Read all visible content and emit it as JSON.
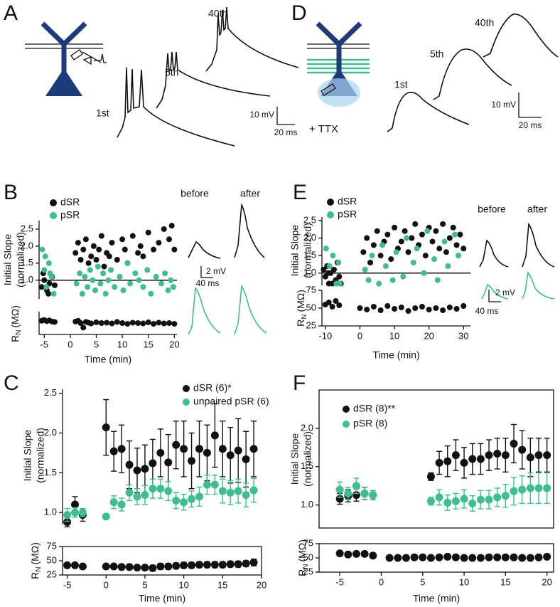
{
  "panel_a": {
    "letter": "A",
    "trace_labels": [
      "1st",
      "5th",
      "40th"
    ],
    "scale_bar": [
      "10 mV",
      "20 ms"
    ]
  },
  "panel_d": {
    "letter": "D",
    "trace_labels": [
      "1st",
      "5th",
      "40th"
    ],
    "drug": "+ TTX",
    "scale_bar": [
      "10 mV",
      "20 ms"
    ]
  },
  "insets": {
    "b": {
      "labels": [
        "before",
        "after"
      ],
      "scale_bar": [
        "2 mV",
        "40 ms"
      ]
    },
    "e": {
      "labels": [
        "before",
        "after"
      ],
      "scale_bar": [
        "2 mV",
        "40 ms"
      ]
    }
  },
  "chart_data": [
    {
      "type": "scatter",
      "letter": "B",
      "ylabel": [
        "Initial Slope",
        "(normalized)"
      ],
      "xlim": [
        -6,
        20.5
      ],
      "ylim": [
        0.45,
        2.75
      ],
      "yticks": [
        {
          "value": 1,
          "label": "1.0"
        },
        1.5,
        {
          "value": 2,
          "label": "2.0"
        },
        2.5
      ],
      "reference_line": 1,
      "series": [
        {
          "name": "dSR",
          "color": "#111111",
          "x": [
            -5.5,
            -5.2,
            -5,
            -4.5,
            -4.2,
            -4,
            -3.5,
            -3,
            1,
            1.5,
            2,
            2.5,
            3,
            3.5,
            4,
            4.5,
            5,
            5.5,
            6,
            6.5,
            7,
            7.5,
            8,
            9,
            10,
            10.5,
            11,
            12,
            13,
            13.5,
            14,
            15,
            16,
            17,
            18,
            19,
            19.5,
            20
          ],
          "values": [
            0.8,
            1.2,
            1.0,
            0.7,
            0.6,
            0.9,
            1.1,
            0.85,
            1.8,
            2.1,
            1.6,
            1.9,
            2.2,
            1.5,
            1.7,
            2.0,
            1.6,
            1.9,
            2.3,
            1.4,
            1.8,
            1.7,
            2.1,
            1.6,
            2.2,
            1.9,
            1.5,
            2.3,
            1.8,
            2.0,
            1.7,
            2.4,
            1.9,
            2.1,
            2.5,
            2.2,
            2.6,
            1.9
          ]
        },
        {
          "name": "pSR",
          "color": "#3cbf8c",
          "x": [
            -5.4,
            -5,
            -4.8,
            -4.6,
            -4.1,
            -3.9,
            -3.6,
            -3.2,
            1.2,
            1.8,
            2.3,
            2.8,
            3.3,
            3.8,
            4.3,
            4.8,
            5.3,
            5.8,
            6.3,
            6.8,
            7.3,
            7.8,
            8.5,
            9.5,
            10.2,
            11,
            11.5,
            12.5,
            13.2,
            14,
            14.8,
            15.5,
            16.5,
            17.5,
            18.2,
            18.8,
            19.3,
            19.8
          ],
          "values": [
            1.9,
            1.3,
            1.7,
            0.8,
            1.5,
            1.2,
            1.1,
            0.6,
            0.9,
            1.2,
            0.6,
            1.1,
            0.8,
            1.3,
            1.0,
            0.7,
            1.4,
            0.9,
            1.2,
            0.6,
            1.0,
            1.3,
            0.8,
            1.1,
            0.7,
            1.5,
            0.9,
            1.2,
            1.0,
            0.8,
            1.3,
            0.6,
            1.1,
            0.9,
            1.2,
            0.7,
            1.0,
            0.8
          ]
        }
      ]
    },
    {
      "type": "scatter",
      "ylabel": {
        "main": "R",
        "sub": "N",
        "unit": "(MΩ)"
      },
      "xlabel": "Time (min)",
      "xlim": [
        -6,
        20.5
      ],
      "ylim": [
        0,
        60
      ],
      "xticks": [
        -5,
        0,
        5,
        10,
        15,
        20
      ],
      "series": [
        {
          "color": "#111111",
          "x": [
            -5.5,
            -5,
            -4.5,
            -4,
            -3.5,
            -3,
            1,
            1.5,
            2,
            2.5,
            3,
            3.5,
            4,
            5,
            6,
            7,
            8,
            9,
            10,
            11,
            12,
            13,
            14,
            15,
            16,
            17,
            18,
            19,
            20
          ],
          "values": [
            36,
            38,
            35,
            37,
            34,
            33,
            34,
            36,
            30,
            18,
            33,
            31,
            29,
            32,
            30,
            31,
            29,
            33,
            30,
            28,
            31,
            30,
            29,
            32,
            28,
            31,
            29,
            30,
            28
          ]
        }
      ]
    },
    {
      "type": "scatter",
      "letter": "E",
      "ylabel": [
        "Initial Slope",
        "(normalized)"
      ],
      "xlim": [
        -11,
        32
      ],
      "ylim": [
        0.65,
        2.6
      ],
      "yticks": [
        {
          "value": 1,
          "label": "1.0"
        },
        1.5,
        {
          "value": 2,
          "label": "2.0"
        },
        2.5
      ],
      "reference_line": 1,
      "series": [
        {
          "name": "dSR",
          "color": "#111111",
          "x": [
            -10.5,
            -10,
            -9.5,
            -9.2,
            -9,
            -8.5,
            -8,
            -7.5,
            -7,
            -6.5,
            -6,
            -5.5,
            1,
            2,
            3,
            4,
            5,
            6,
            7,
            8,
            9,
            10,
            11,
            12,
            13,
            14,
            15,
            16,
            17,
            18,
            19,
            20,
            21,
            22,
            23,
            24,
            25,
            26,
            27,
            28,
            29,
            30
          ],
          "values": [
            1.1,
            0.9,
            1.2,
            1.0,
            0.7,
            1.0,
            0.7,
            1.1,
            0.8,
            1.3,
            0.9,
            0.7,
            1.6,
            2.0,
            1.3,
            1.8,
            2.2,
            1.5,
            1.9,
            2.1,
            1.4,
            2.3,
            1.7,
            1.9,
            2.2,
            1.6,
            2.0,
            2.4,
            1.8,
            2.1,
            1.5,
            2.3,
            1.9,
            2.2,
            1.7,
            2.4,
            1.6,
            2.0,
            2.3,
            1.8,
            2.1,
            1.7
          ]
        },
        {
          "name": "pSR",
          "color": "#3cbf8c",
          "x": [
            -9.8,
            -8.8,
            -7.8,
            -6.8,
            -6.2,
            -5.8,
            1.5,
            2.5,
            3.5,
            5.5,
            6.5,
            7.5,
            9.5,
            10.5,
            12.5,
            13.5,
            15.5,
            16.5,
            18.5,
            19.5,
            21.5,
            22.5,
            24.5,
            25.5,
            27.5,
            28.5
          ],
          "values": [
            1.7,
            1.2,
            1.5,
            0.7,
            1.3,
            0.7,
            1.1,
            0.8,
            1.5,
            0.7,
            1.8,
            1.2,
            0.8,
            1.6,
            0.9,
            2.0,
            1.3,
            1.7,
            1.0,
            2.2,
            1.4,
            0.8,
            1.9,
            1.2,
            2.1,
            1.5
          ]
        }
      ]
    },
    {
      "type": "scatter",
      "ylabel": {
        "main": "R",
        "sub": "N",
        "unit": "(MΩ)"
      },
      "xlabel": "Time (min)",
      "xlim": [
        -11,
        32
      ],
      "ylim": [
        25,
        75
      ],
      "xticks": [
        -10,
        0,
        10,
        20,
        30
      ],
      "yticks": [
        25,
        50,
        75
      ],
      "series": [
        {
          "color": "#111111",
          "x": [
            -10,
            -9,
            -8,
            -7,
            -6,
            0,
            2,
            4,
            6,
            8,
            10,
            12,
            14,
            16,
            18,
            20,
            22,
            24,
            26,
            28,
            30
          ],
          "values": [
            55,
            58,
            52,
            60,
            54,
            50,
            48,
            52,
            47,
            53,
            49,
            51,
            46,
            50,
            52,
            48,
            50,
            47,
            51,
            49,
            53
          ]
        }
      ]
    },
    {
      "type": "errorbar",
      "letter": "C",
      "ylabel": [
        "Initial Slope",
        "(normalized)"
      ],
      "xlim": [
        -5.6,
        20
      ],
      "ylim": [
        0.85,
        2.55
      ],
      "yticks": [
        {
          "value": 1,
          "label": "1.0"
        },
        1.5,
        {
          "value": 2,
          "label": "2.0"
        },
        2.5
      ],
      "series": [
        {
          "name": "dSR (6)*",
          "color": "#111111",
          "x": [
            -5,
            -4,
            -3,
            0,
            1,
            2,
            3,
            4,
            5,
            6,
            7,
            8,
            9,
            10,
            11,
            12,
            13,
            14,
            15,
            16,
            17,
            18,
            19
          ],
          "values": [
            0.88,
            1.1,
            0.97,
            2.07,
            1.77,
            1.8,
            1.6,
            1.53,
            1.55,
            1.62,
            1.75,
            1.63,
            1.85,
            1.8,
            1.65,
            1.8,
            1.75,
            1.97,
            1.8,
            1.72,
            1.78,
            1.67,
            1.8
          ],
          "errors": [
            0.06,
            0.1,
            0.08,
            0.35,
            0.25,
            0.3,
            0.3,
            0.28,
            0.3,
            0.3,
            0.3,
            0.35,
            0.3,
            0.35,
            0.35,
            0.35,
            0.35,
            0.4,
            0.35,
            0.35,
            0.4,
            0.35,
            0.35
          ]
        },
        {
          "name": "unpaired pSR (6)",
          "color": "#3cbf8c",
          "x": [
            -5,
            -4,
            -3,
            0,
            1,
            2,
            3,
            4,
            5,
            6,
            7,
            8,
            9,
            10,
            11,
            12,
            13,
            14,
            15,
            16,
            17,
            18,
            19
          ],
          "values": [
            0.97,
            1.0,
            1.0,
            0.95,
            1.13,
            1.1,
            1.25,
            1.2,
            1.22,
            1.3,
            1.3,
            1.27,
            1.15,
            1.13,
            1.17,
            1.2,
            1.35,
            1.35,
            1.27,
            1.25,
            1.27,
            1.22,
            1.28
          ],
          "errors": [
            0.08,
            0.06,
            0.05,
            0.03,
            0.08,
            0.08,
            0.1,
            0.1,
            0.12,
            0.12,
            0.12,
            0.12,
            0.1,
            0.1,
            0.1,
            0.12,
            0.12,
            0.12,
            0.15,
            0.15,
            0.15,
            0.15,
            0.15
          ]
        }
      ]
    },
    {
      "type": "errorbar",
      "ylabel": {
        "main": "R",
        "sub": "N",
        "unit": "(MΩ)"
      },
      "xlabel": "Time (min)",
      "xlim": [
        -5.6,
        20
      ],
      "ylim": [
        25,
        75
      ],
      "xticks": [
        -5,
        0,
        5,
        10,
        15,
        20
      ],
      "yticks": [
        25,
        50,
        75
      ],
      "series": [
        {
          "color": "#111111",
          "x": [
            -5,
            -4,
            -3,
            0,
            1,
            2,
            3,
            4,
            5,
            6,
            7,
            8,
            9,
            10,
            11,
            12,
            13,
            14,
            15,
            16,
            17,
            18,
            19
          ],
          "values": [
            42,
            42,
            40,
            40,
            40,
            39,
            39,
            38,
            38,
            37,
            40,
            40,
            41,
            42,
            42,
            43,
            43,
            43,
            43,
            44,
            44,
            45,
            47
          ],
          "errors": [
            4,
            4,
            4,
            3,
            3,
            4,
            4,
            4,
            4,
            5,
            5,
            5,
            5,
            5,
            5,
            5,
            5,
            5,
            5,
            5,
            5,
            5,
            6
          ]
        }
      ]
    },
    {
      "type": "errorbar",
      "letter": "F",
      "ylabel": [
        "Initial Slope",
        "(normalized)"
      ],
      "xlim": [
        -7.5,
        20.8
      ],
      "ylim": [
        0.7,
        2.5
      ],
      "yticks": [
        {
          "value": 1,
          "label": "1.0"
        },
        1.5,
        {
          "value": 2,
          "label": "2.0"
        }
      ],
      "series": [
        {
          "name": "dSR (8)**",
          "color": "#111111",
          "x": [
            -5,
            -4,
            -3,
            -2,
            -1,
            6,
            7,
            8,
            9,
            10,
            11,
            12,
            13,
            14,
            15,
            16,
            17,
            18,
            19,
            20
          ],
          "values": [
            1.08,
            1.12,
            1.13,
            1.15,
            1.13,
            1.37,
            1.55,
            1.57,
            1.65,
            1.55,
            1.6,
            1.6,
            1.65,
            1.67,
            1.65,
            1.8,
            1.72,
            1.62,
            1.65,
            1.65
          ],
          "errors": [
            0.07,
            0.08,
            0.08,
            0.08,
            0.06,
            0.05,
            0.15,
            0.2,
            0.2,
            0.2,
            0.2,
            0.2,
            0.2,
            0.2,
            0.22,
            0.25,
            0.25,
            0.25,
            0.22,
            0.22
          ]
        },
        {
          "name": "pSR (8)",
          "color": "#3cbf8c",
          "x": [
            -5,
            -4,
            -3,
            -2,
            -1,
            6,
            7,
            8,
            9,
            10,
            11,
            12,
            13,
            14,
            15,
            16,
            17,
            18,
            19,
            20
          ],
          "values": [
            1.2,
            1.15,
            1.25,
            1.15,
            1.13,
            1.05,
            1.1,
            1.03,
            1.05,
            1.08,
            1.02,
            1.07,
            1.07,
            1.1,
            1.12,
            1.18,
            1.2,
            1.22,
            1.22,
            1.22
          ],
          "errors": [
            0.1,
            0.08,
            0.1,
            0.08,
            0.06,
            0.05,
            0.1,
            0.1,
            0.1,
            0.12,
            0.1,
            0.12,
            0.12,
            0.12,
            0.15,
            0.18,
            0.18,
            0.2,
            0.2,
            0.2
          ]
        }
      ]
    },
    {
      "type": "errorbar",
      "ylabel": {
        "main": "R",
        "sub": "N",
        "unit": "(MΩ)"
      },
      "xlabel": "Time (min)",
      "xlim": [
        -7.5,
        20.8
      ],
      "ylim": [
        25,
        75
      ],
      "xticks": [
        -5,
        0,
        5,
        10,
        15,
        20
      ],
      "yticks": [
        25,
        50,
        75
      ],
      "series": [
        {
          "color": "#111111",
          "x": [
            -5,
            -4,
            -3,
            -2,
            -1,
            1,
            2,
            3,
            4,
            5,
            6,
            7,
            8,
            9,
            10,
            11,
            12,
            13,
            14,
            15,
            16,
            17,
            18,
            19,
            20
          ],
          "values": [
            58,
            56,
            57,
            57,
            54,
            50,
            50,
            50,
            51,
            51,
            50,
            51,
            52,
            51,
            50,
            50,
            50,
            51,
            51,
            51,
            51,
            50,
            50,
            51,
            52
          ],
          "errors": [
            4,
            3,
            2,
            2,
            2,
            2,
            2,
            2,
            2,
            2,
            2,
            2,
            3,
            2,
            2,
            2,
            2,
            2,
            2,
            2,
            2,
            3,
            3,
            3,
            3
          ]
        }
      ]
    }
  ]
}
